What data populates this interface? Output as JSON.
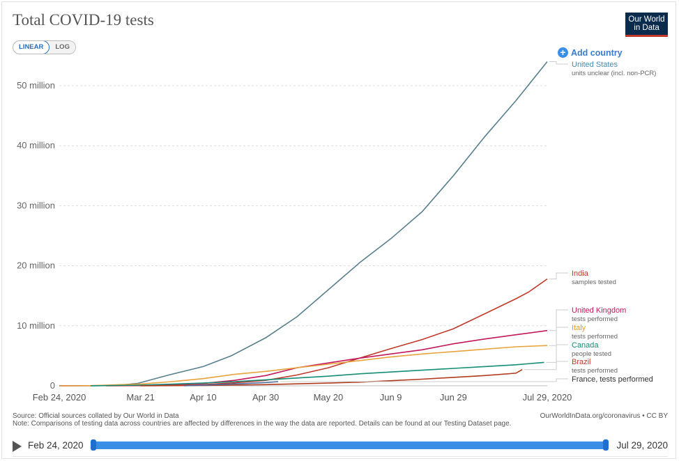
{
  "title": "Total COVID-19 tests",
  "logo": {
    "line1": "Our World",
    "line2": "in Data"
  },
  "scale_toggle": {
    "linear": "LINEAR",
    "log": "LOG"
  },
  "add_country": "Add country",
  "footer": {
    "source": "Source: Official sources collated by Our World in Data",
    "note": "Note: Comparisons of testing data across countries are affected by differences in the way the data are reported. Details can be found at our Testing Dataset page.",
    "url": "OurWorldInData.org/coronavirus • CC BY"
  },
  "timeline": {
    "start": "Feb 24, 2020",
    "end": "Jul 29, 2020"
  },
  "chart_data": {
    "type": "line",
    "title": "Total COVID-19 tests",
    "ylim": [
      0,
      54000000
    ],
    "x_ticks": [
      "Feb 24, 2020",
      "Mar 21",
      "Apr 10",
      "Apr 30",
      "May 20",
      "Jun 9",
      "Jun 29",
      "Jul 29, 2020"
    ],
    "y_ticks": [
      {
        "value": 0,
        "label": "0"
      },
      {
        "value": 10000000,
        "label": "10 million"
      },
      {
        "value": 20000000,
        "label": "20 million"
      },
      {
        "value": 30000000,
        "label": "30 million"
      },
      {
        "value": 40000000,
        "label": "40 million"
      },
      {
        "value": 50000000,
        "label": "50 million"
      }
    ],
    "x_domain_days": [
      0,
      156
    ],
    "x_tick_days": [
      0,
      26,
      46,
      66,
      86,
      106,
      126,
      156
    ],
    "series": [
      {
        "name": "United States",
        "sub": "units unclear (incl. non-PCR)",
        "color": "#5a7f8c",
        "label_color": "#4a8bb0",
        "points": [
          [
            0,
            0
          ],
          [
            10,
            0
          ],
          [
            18,
            50000
          ],
          [
            25,
            400000
          ],
          [
            35,
            1800000
          ],
          [
            46,
            3200000
          ],
          [
            55,
            5000000
          ],
          [
            66,
            8000000
          ],
          [
            76,
            11500000
          ],
          [
            86,
            16000000
          ],
          [
            96,
            20500000
          ],
          [
            106,
            24500000
          ],
          [
            116,
            29000000
          ],
          [
            126,
            35000000
          ],
          [
            136,
            41500000
          ],
          [
            146,
            47500000
          ],
          [
            156,
            54000000
          ]
        ]
      },
      {
        "name": "India",
        "sub": "samples tested",
        "color": "#c0392b",
        "label_color": "#c0392b",
        "points": [
          [
            15,
            0
          ],
          [
            30,
            30000
          ],
          [
            46,
            200000
          ],
          [
            56,
            500000
          ],
          [
            66,
            900000
          ],
          [
            76,
            1800000
          ],
          [
            86,
            3000000
          ],
          [
            96,
            4600000
          ],
          [
            106,
            6200000
          ],
          [
            116,
            7700000
          ],
          [
            126,
            9500000
          ],
          [
            136,
            12000000
          ],
          [
            146,
            14500000
          ],
          [
            150,
            15600000
          ],
          [
            156,
            17800000
          ]
        ]
      },
      {
        "name": "United Kingdom",
        "sub": "tests performed",
        "color": "#c2185b",
        "label_color": "#c2185b",
        "points": [
          [
            0,
            0
          ],
          [
            26,
            80000
          ],
          [
            46,
            400000
          ],
          [
            56,
            900000
          ],
          [
            66,
            1700000
          ],
          [
            76,
            3000000
          ],
          [
            86,
            3800000
          ],
          [
            96,
            4600000
          ],
          [
            106,
            5300000
          ],
          [
            116,
            6000000
          ],
          [
            126,
            7000000
          ],
          [
            136,
            7800000
          ],
          [
            146,
            8500000
          ],
          [
            156,
            9200000
          ]
        ]
      },
      {
        "name": "Italy",
        "sub": "tests performed",
        "color": "#e8a33d",
        "label_color": "#e0a020",
        "points": [
          [
            0,
            0
          ],
          [
            10,
            20000
          ],
          [
            26,
            300000
          ],
          [
            36,
            700000
          ],
          [
            46,
            1200000
          ],
          [
            56,
            1900000
          ],
          [
            66,
            2400000
          ],
          [
            76,
            3000000
          ],
          [
            86,
            3600000
          ],
          [
            96,
            4200000
          ],
          [
            106,
            4800000
          ],
          [
            116,
            5300000
          ],
          [
            126,
            5700000
          ],
          [
            136,
            6100000
          ],
          [
            146,
            6500000
          ],
          [
            156,
            6700000
          ]
        ]
      },
      {
        "name": "Canada",
        "sub": "people tested",
        "color": "#138d75",
        "label_color": "#138d75",
        "points": [
          [
            10,
            0
          ],
          [
            26,
            120000
          ],
          [
            46,
            450000
          ],
          [
            56,
            700000
          ],
          [
            66,
            1000000
          ],
          [
            76,
            1300000
          ],
          [
            86,
            1600000
          ],
          [
            96,
            2000000
          ],
          [
            106,
            2300000
          ],
          [
            116,
            2600000
          ],
          [
            126,
            2900000
          ],
          [
            136,
            3200000
          ],
          [
            146,
            3500000
          ],
          [
            155,
            3900000
          ]
        ]
      },
      {
        "name": "Brazil",
        "sub": "tests performed",
        "color": "#b03a1c",
        "label_color": "#c0392b",
        "points": [
          [
            26,
            0
          ],
          [
            46,
            60000
          ],
          [
            66,
            200000
          ],
          [
            86,
            450000
          ],
          [
            96,
            600000
          ],
          [
            106,
            850000
          ],
          [
            116,
            1100000
          ],
          [
            126,
            1400000
          ],
          [
            136,
            1700000
          ],
          [
            146,
            2100000
          ],
          [
            148,
            2700000
          ]
        ]
      },
      {
        "name": "France, tests performed",
        "sub": "",
        "color": "#4c6a9c",
        "label_color": "#333",
        "points": [
          [
            40,
            0
          ],
          [
            50,
            200000
          ],
          [
            60,
            400000
          ],
          [
            66,
            550000
          ],
          [
            70,
            700000
          ]
        ]
      }
    ]
  }
}
